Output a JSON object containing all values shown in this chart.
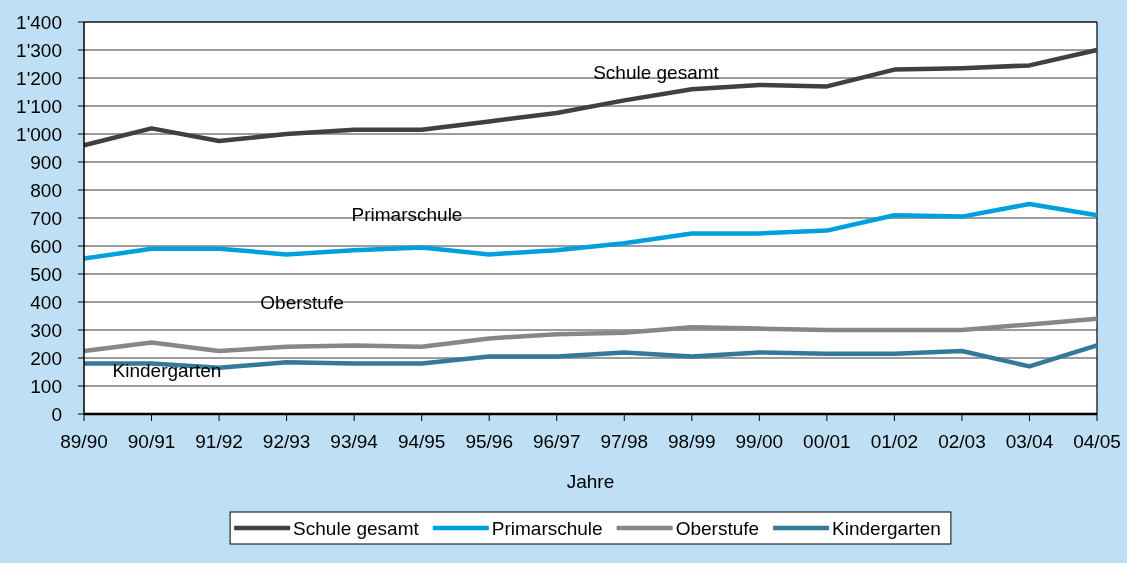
{
  "chart_data": {
    "type": "line",
    "xlabel": "Jahre",
    "categories": [
      "89/90",
      "90/91",
      "91/92",
      "92/93",
      "93/94",
      "94/95",
      "95/96",
      "96/97",
      "97/98",
      "98/99",
      "99/00",
      "00/01",
      "01/02",
      "02/03",
      "03/04",
      "04/05"
    ],
    "ylim": [
      0,
      1400
    ],
    "yticks": [
      0,
      100,
      200,
      300,
      400,
      500,
      600,
      700,
      800,
      900,
      {
        "value": 1000,
        "label": "1'000"
      },
      {
        "value": 1100,
        "label": "1'100"
      },
      {
        "value": 1200,
        "label": "1'200"
      },
      {
        "value": 1300,
        "label": "1'300"
      },
      {
        "value": 1400,
        "label": "1'400"
      }
    ],
    "grid": "y",
    "legend": "bottom",
    "series": [
      {
        "name": "Schule gesamt",
        "color": "#404040",
        "values": [
          960,
          1020,
          975,
          1000,
          1015,
          1015,
          1045,
          1075,
          1120,
          1160,
          1175,
          1170,
          1230,
          1235,
          1245,
          1300
        ]
      },
      {
        "name": "Primarschule",
        "color": "#00a0dc",
        "values": [
          555,
          590,
          590,
          570,
          585,
          595,
          570,
          585,
          610,
          645,
          645,
          655,
          710,
          705,
          750,
          710
        ]
      },
      {
        "name": "Oberstufe",
        "color": "#878787",
        "values": [
          225,
          255,
          225,
          240,
          245,
          240,
          270,
          285,
          290,
          310,
          305,
          300,
          300,
          300,
          320,
          340
        ]
      },
      {
        "name": "Kindergarten",
        "color": "#35799a",
        "values": [
          180,
          180,
          165,
          185,
          180,
          180,
          205,
          205,
          220,
          205,
          220,
          215,
          215,
          225,
          170,
          245
        ]
      }
    ],
    "annotations": [
      "Schule gesamt",
      "Primarschule",
      "Oberstufe",
      "Kindergarten"
    ]
  }
}
